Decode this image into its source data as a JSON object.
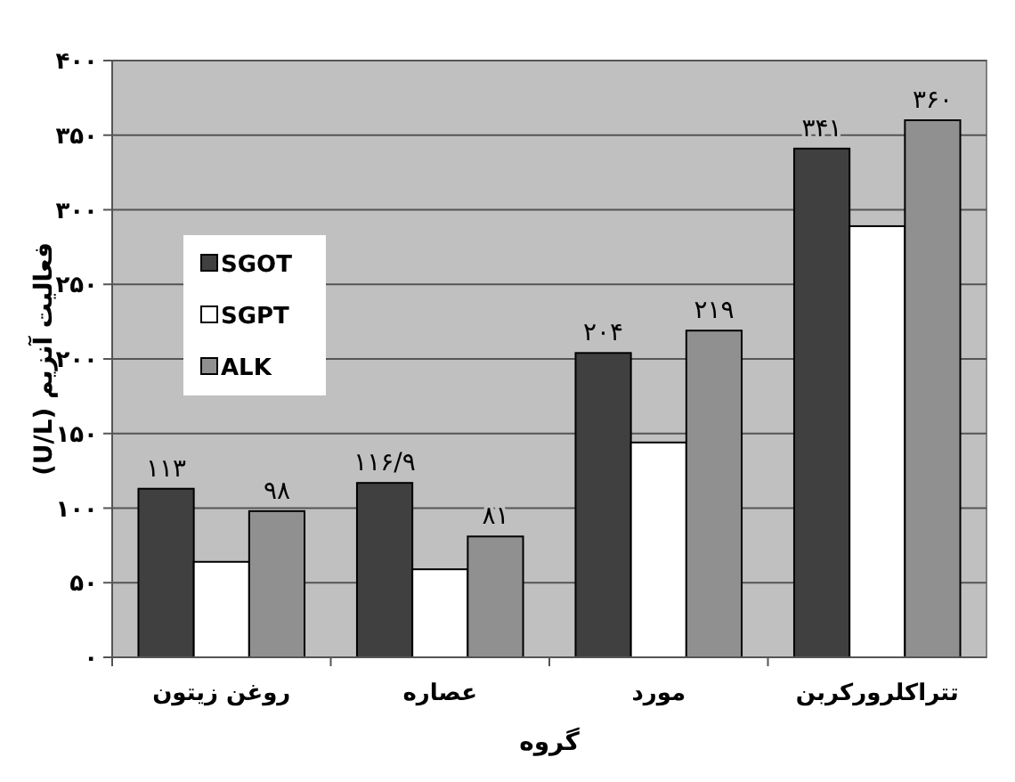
{
  "chart_data": {
    "type": "bar",
    "xlabel": "گروه",
    "ylabel": "فعالیت آنزیم (U/L)",
    "categories": [
      "روغن زیتون",
      "عصاره",
      "مورد",
      "تتراکلرورکربن"
    ],
    "series": [
      {
        "name": "SGOT",
        "color": "#404040",
        "values": [
          113,
          116.9,
          204,
          341
        ],
        "value_labels": [
          "۱۱۳",
          "۱۱۶/۹",
          "۲۰۴",
          "۳۴۱"
        ]
      },
      {
        "name": "SGPT",
        "color": "#ffffff",
        "values": [
          64,
          59,
          144,
          289
        ],
        "value_labels": [
          null,
          null,
          null,
          null
        ]
      },
      {
        "name": "ALK",
        "color": "#909090",
        "values": [
          98,
          81,
          219,
          360
        ],
        "value_labels": [
          "۹۸",
          "۸۱",
          "۲۱۹",
          "۳۶۰"
        ]
      }
    ],
    "ylim": [
      0,
      400
    ],
    "yticks": [
      {
        "value": 0,
        "label": "۰"
      },
      {
        "value": 50,
        "label": "۵۰"
      },
      {
        "value": 100,
        "label": "۱۰۰"
      },
      {
        "value": 150,
        "label": "۱۵۰"
      },
      {
        "value": 200,
        "label": "۲۰۰"
      },
      {
        "value": 250,
        "label": "۲۵۰"
      },
      {
        "value": 300,
        "label": "۳۰۰"
      },
      {
        "value": 350,
        "label": "۳۵۰"
      },
      {
        "value": 400,
        "label": "۴۰۰"
      }
    ],
    "grid": "y",
    "legend": "left"
  }
}
